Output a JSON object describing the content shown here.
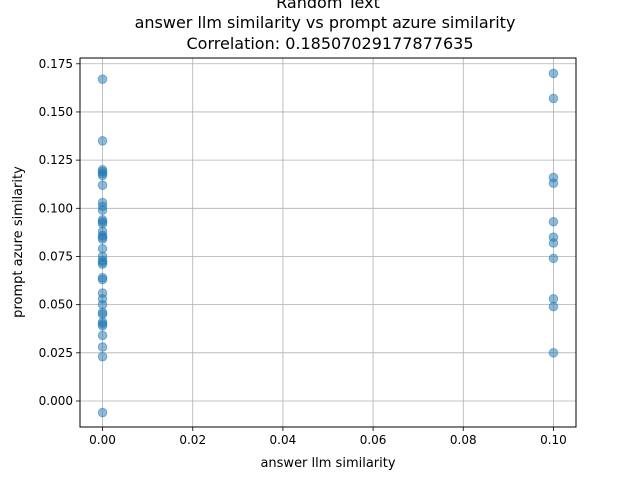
{
  "chart_data": {
    "type": "scatter",
    "title_lines": [
      "Random Text",
      "answer llm similarity vs prompt azure similarity",
      "Correlation: 0.18507029177877635"
    ],
    "xlabel": "answer llm similarity",
    "ylabel": "prompt azure similarity",
    "xlim": [
      -0.005,
      0.105
    ],
    "ylim": [
      -0.0135,
      0.178
    ],
    "xticks": [
      0.0,
      0.02,
      0.04,
      0.06,
      0.08,
      0.1
    ],
    "xtick_labels": [
      "0.00",
      "0.02",
      "0.04",
      "0.06",
      "0.08",
      "0.10"
    ],
    "yticks": [
      0.0,
      0.025,
      0.05,
      0.075,
      0.1,
      0.125,
      0.15,
      0.175
    ],
    "ytick_labels": [
      "0.000",
      "0.025",
      "0.050",
      "0.075",
      "0.100",
      "0.125",
      "0.150",
      "0.175"
    ],
    "grid": true,
    "marker_color": "#1f77b4",
    "marker_alpha": 0.5,
    "points": [
      {
        "x": 0.0,
        "y": 0.167
      },
      {
        "x": 0.0,
        "y": 0.135
      },
      {
        "x": 0.0,
        "y": 0.12
      },
      {
        "x": 0.0,
        "y": 0.119
      },
      {
        "x": 0.0,
        "y": 0.118
      },
      {
        "x": 0.0,
        "y": 0.117
      },
      {
        "x": 0.0,
        "y": 0.112
      },
      {
        "x": 0.0,
        "y": 0.103
      },
      {
        "x": 0.0,
        "y": 0.101
      },
      {
        "x": 0.0,
        "y": 0.099
      },
      {
        "x": 0.0,
        "y": 0.094
      },
      {
        "x": 0.0,
        "y": 0.093
      },
      {
        "x": 0.0,
        "y": 0.092
      },
      {
        "x": 0.0,
        "y": 0.088
      },
      {
        "x": 0.0,
        "y": 0.086
      },
      {
        "x": 0.0,
        "y": 0.085
      },
      {
        "x": 0.0,
        "y": 0.084
      },
      {
        "x": 0.0,
        "y": 0.079
      },
      {
        "x": 0.0,
        "y": 0.075
      },
      {
        "x": 0.0,
        "y": 0.073
      },
      {
        "x": 0.0,
        "y": 0.072
      },
      {
        "x": 0.0,
        "y": 0.071
      },
      {
        "x": 0.0,
        "y": 0.064
      },
      {
        "x": 0.0,
        "y": 0.063
      },
      {
        "x": 0.0,
        "y": 0.056
      },
      {
        "x": 0.0,
        "y": 0.053
      },
      {
        "x": 0.0,
        "y": 0.05
      },
      {
        "x": 0.0,
        "y": 0.046
      },
      {
        "x": 0.0,
        "y": 0.045
      },
      {
        "x": 0.0,
        "y": 0.041
      },
      {
        "x": 0.0,
        "y": 0.04
      },
      {
        "x": 0.0,
        "y": 0.039
      },
      {
        "x": 0.0,
        "y": 0.034
      },
      {
        "x": 0.0,
        "y": 0.028
      },
      {
        "x": 0.0,
        "y": 0.023
      },
      {
        "x": 0.0,
        "y": -0.006
      },
      {
        "x": 0.1,
        "y": 0.17
      },
      {
        "x": 0.1,
        "y": 0.157
      },
      {
        "x": 0.1,
        "y": 0.116
      },
      {
        "x": 0.1,
        "y": 0.113
      },
      {
        "x": 0.1,
        "y": 0.093
      },
      {
        "x": 0.1,
        "y": 0.085
      },
      {
        "x": 0.1,
        "y": 0.082
      },
      {
        "x": 0.1,
        "y": 0.074
      },
      {
        "x": 0.1,
        "y": 0.053
      },
      {
        "x": 0.1,
        "y": 0.049
      },
      {
        "x": 0.1,
        "y": 0.025
      }
    ]
  }
}
